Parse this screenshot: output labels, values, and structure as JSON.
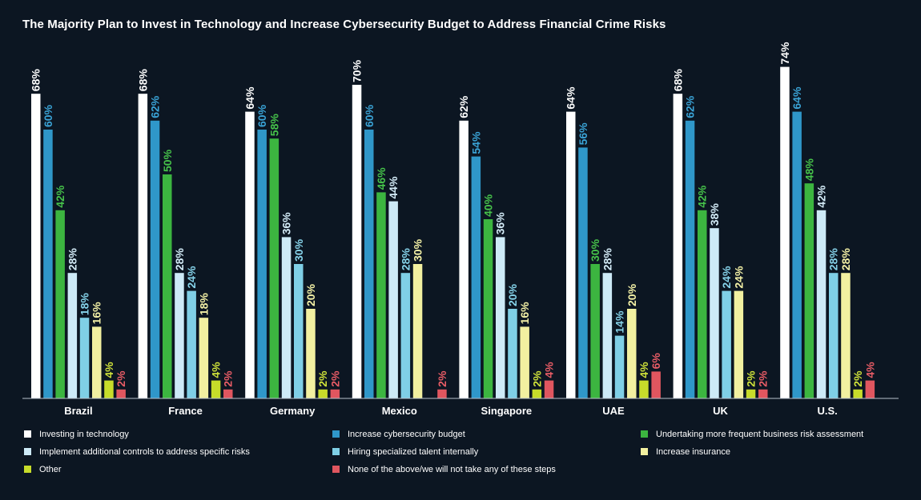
{
  "chart_data": {
    "type": "bar",
    "title": "The Majority Plan to Invest in Technology and Increase Cybersecurity Budget to Address Financial Crime Risks",
    "xlabel": "",
    "ylabel": "",
    "ylim": [
      0,
      80
    ],
    "grid": false,
    "legend_position": "bottom",
    "categories": [
      "Brazil",
      "France",
      "Germany",
      "Mexico",
      "Singapore",
      "UAE",
      "UK",
      "U.S."
    ],
    "series": [
      {
        "name": "Investing in technology",
        "color": "#ffffff",
        "label_color": "#ffffff",
        "values": [
          68,
          68,
          64,
          70,
          62,
          64,
          68,
          74
        ]
      },
      {
        "name": "Increase cybersecurity budget",
        "color": "#2f97c9",
        "label_color": "#3aa3d6",
        "values": [
          60,
          62,
          60,
          60,
          54,
          56,
          62,
          64
        ]
      },
      {
        "name": "Undertaking more frequent business risk assessment",
        "color": "#3cb540",
        "label_color": "#46c24a",
        "values": [
          42,
          50,
          58,
          46,
          40,
          30,
          42,
          48
        ]
      },
      {
        "name": "Implement additional controls to address specific risks",
        "color": "#cdeaf7",
        "label_color": "#d4ecf8",
        "values": [
          28,
          28,
          36,
          44,
          36,
          28,
          38,
          42
        ]
      },
      {
        "name": "Hiring specialized talent internally",
        "color": "#7fcfe6",
        "label_color": "#86d3ea",
        "values": [
          18,
          24,
          30,
          28,
          20,
          14,
          24,
          28
        ]
      },
      {
        "name": "Increase insurance",
        "color": "#f2f0a0",
        "label_color": "#f4f1a6",
        "values": [
          16,
          18,
          20,
          30,
          16,
          20,
          24,
          28
        ]
      },
      {
        "name": "Other",
        "color": "#c7dc2a",
        "label_color": "#cfe23a",
        "values": [
          4,
          4,
          2,
          0,
          2,
          4,
          2,
          2
        ]
      },
      {
        "name": "None of the above/we will not take any of these steps",
        "color": "#e0565f",
        "label_color": "#e85c66",
        "values": [
          2,
          2,
          2,
          2,
          4,
          6,
          2,
          4
        ]
      }
    ],
    "value_suffix": "%"
  }
}
